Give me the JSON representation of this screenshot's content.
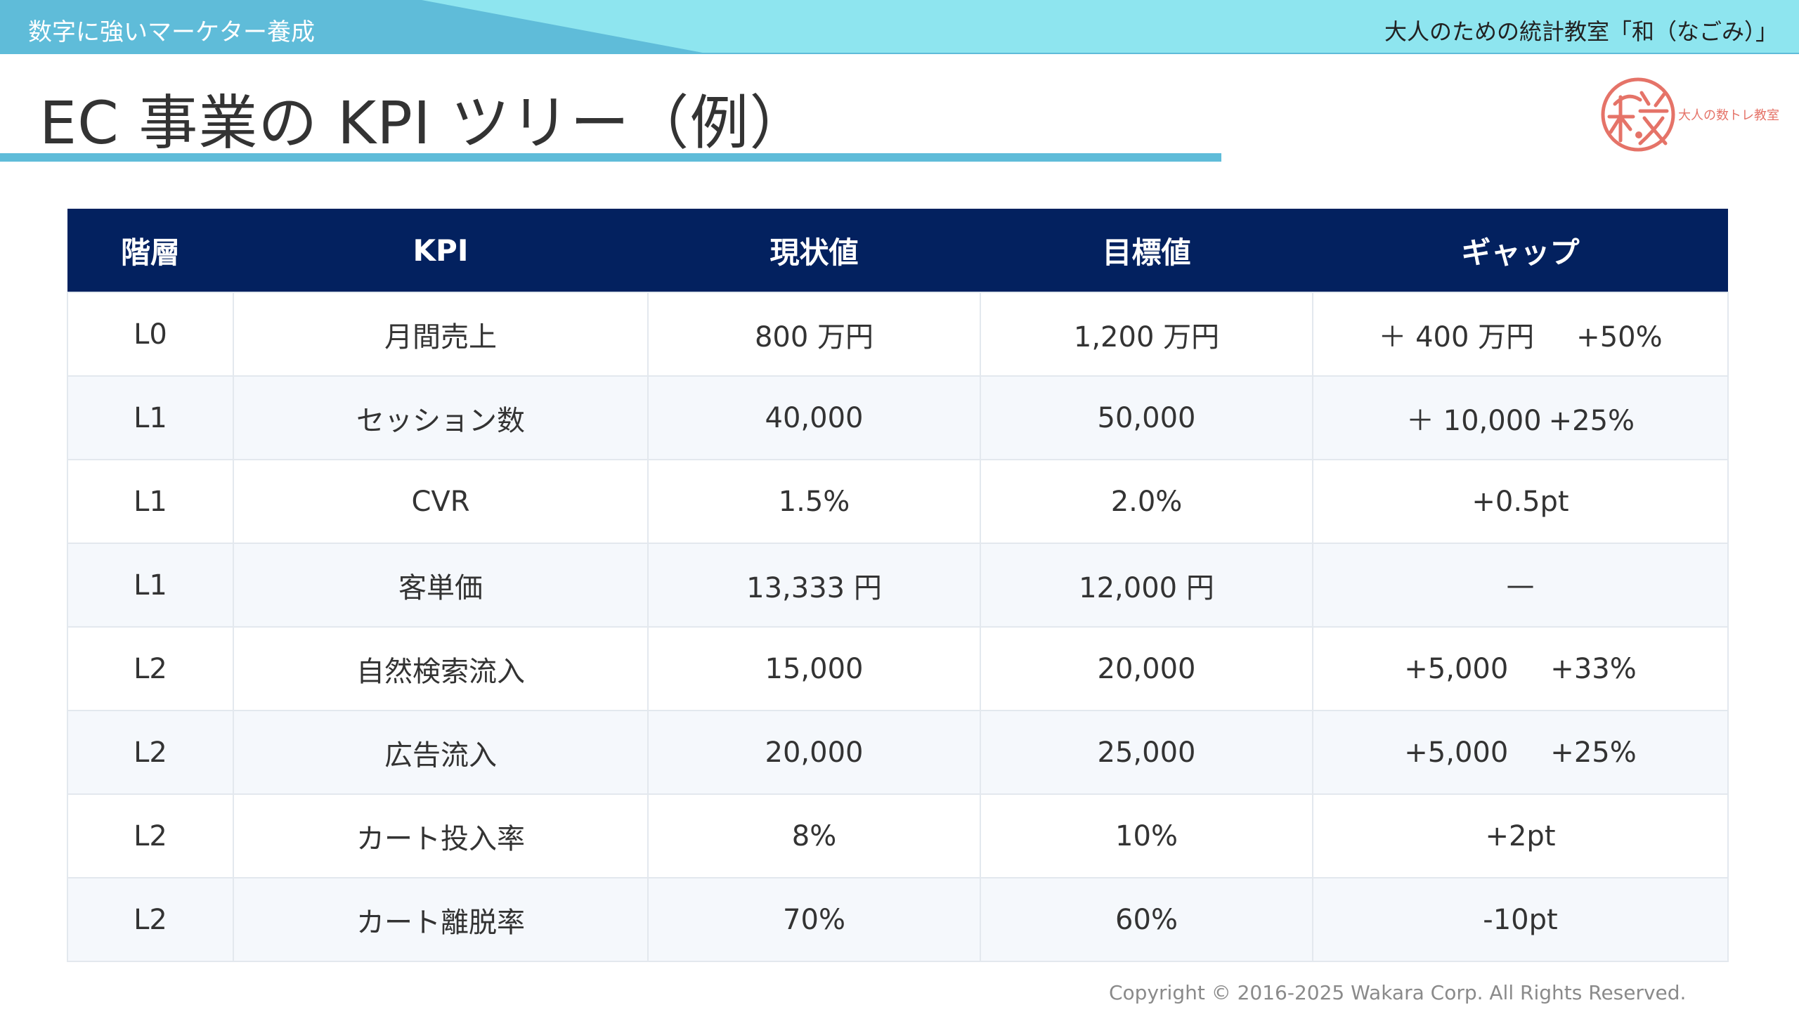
{
  "header": {
    "subtitle": "数字に強いマーケター養成",
    "school_name": "大人のための統計教室「和（なごみ）」"
  },
  "slide": {
    "title": "EC 事業の KPI ツリー（例）"
  },
  "logo": {
    "text": "大人の数トレ教室",
    "icon": "wakara-logo-icon",
    "color": "#e57368"
  },
  "colors": {
    "accent": "#5fbcd9",
    "banner": "#8ee5ef",
    "table_header": "#03215f"
  },
  "table": {
    "headers": [
      "階層",
      "KPI",
      "現状値",
      "目標値",
      "ギャップ"
    ],
    "rows": [
      {
        "level": "L0",
        "kpi": "月間売上",
        "current": "800 万円",
        "target": "1,200 万円",
        "gap_abs": "＋ 400 万円",
        "gap_rel": "+50%"
      },
      {
        "level": "L1",
        "kpi": "セッション数",
        "current": "40,000",
        "target": "50,000",
        "gap_abs": "＋ 10,000",
        "gap_rel": "+25%"
      },
      {
        "level": "L1",
        "kpi": "CVR",
        "current": "1.5%",
        "target": "2.0%",
        "gap_abs": "+0.5pt",
        "gap_rel": ""
      },
      {
        "level": "L1",
        "kpi": "客単価",
        "current": "13,333 円",
        "target": "12,000 円",
        "gap_abs": "—",
        "gap_rel": ""
      },
      {
        "level": "L2",
        "kpi": "自然検索流入",
        "current": "15,000",
        "target": "20,000",
        "gap_abs": "+5,000",
        "gap_rel": "+33%"
      },
      {
        "level": "L2",
        "kpi": "広告流入",
        "current": "20,000",
        "target": "25,000",
        "gap_abs": "+5,000",
        "gap_rel": "+25%"
      },
      {
        "level": "L2",
        "kpi": "カート投入率",
        "current": "8%",
        "target": "10%",
        "gap_abs": "+2pt",
        "gap_rel": ""
      },
      {
        "level": "L2",
        "kpi": "カート離脱率",
        "current": "70%",
        "target": "60%",
        "gap_abs": "-10pt",
        "gap_rel": ""
      }
    ]
  },
  "footer": {
    "copyright": "Copyright © 2016-2025 Wakara Corp. All Rights Reserved."
  }
}
